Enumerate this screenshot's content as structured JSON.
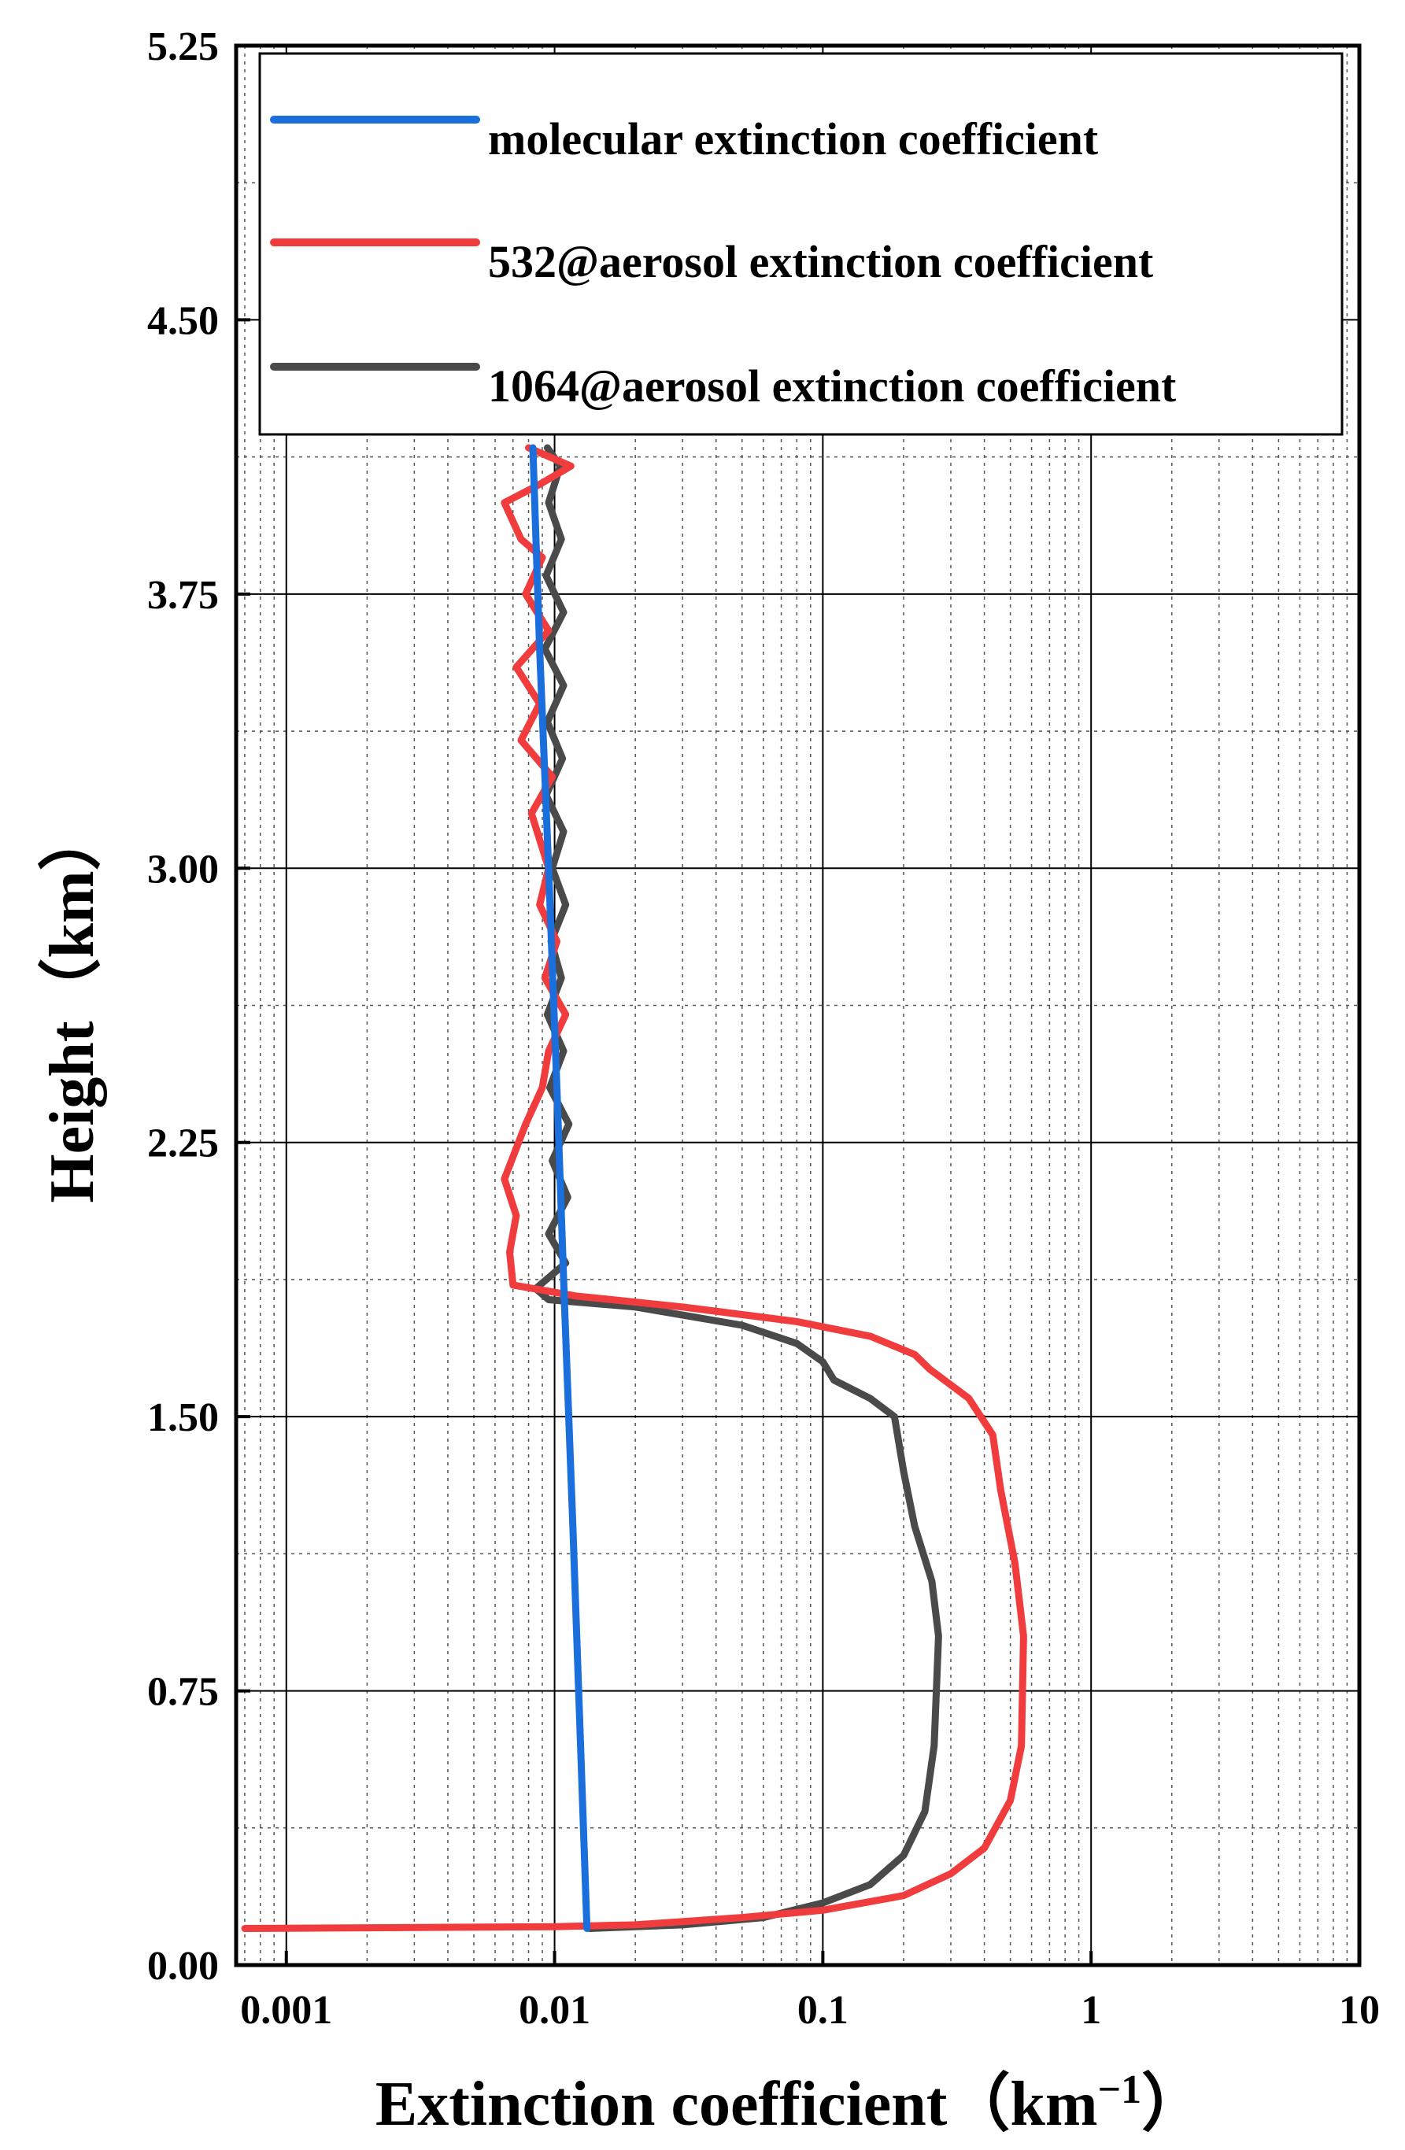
{
  "chart_data": {
    "type": "line",
    "xlabel": "Extinction coefficient（km",
    "xlabel_sup": "−1",
    "xlabel_close": "）",
    "ylabel": "Height（km）",
    "x_scale": "log",
    "xlim": [
      0.00065,
      10
    ],
    "ylim": [
      0,
      5.25
    ],
    "x_ticks": [
      0.001,
      0.01,
      0.1,
      1,
      10
    ],
    "x_tick_labels": [
      "0.001",
      "0.01",
      "0.1",
      "1",
      "10"
    ],
    "y_ticks": [
      0,
      0.75,
      1.5,
      2.25,
      3.0,
      3.75,
      4.5,
      5.25
    ],
    "y_tick_labels": [
      "0.00",
      "0.75",
      "1.50",
      "2.25",
      "3.00",
      "3.75",
      "4.50",
      "5.25"
    ],
    "grid": true,
    "legend": "top",
    "series": [
      {
        "name": "molecular extinction coefficient",
        "color": "#1a6fdc",
        "points": [
          [
            0.0132,
            0.1
          ],
          [
            0.0125,
            0.6
          ],
          [
            0.0117,
            1.2
          ],
          [
            0.0109,
            1.8
          ],
          [
            0.0102,
            2.4
          ],
          [
            0.0095,
            3.0
          ],
          [
            0.0088,
            3.6
          ],
          [
            0.0083,
            4.15
          ]
        ]
      },
      {
        "name": "532@aerosol extinction coefficient",
        "color": "#f03c3c",
        "points": [
          [
            0.0007,
            0.1
          ],
          [
            0.01,
            0.105
          ],
          [
            0.02,
            0.11
          ],
          [
            0.05,
            0.13
          ],
          [
            0.1,
            0.15
          ],
          [
            0.2,
            0.19
          ],
          [
            0.3,
            0.25
          ],
          [
            0.4,
            0.32
          ],
          [
            0.5,
            0.45
          ],
          [
            0.55,
            0.6
          ],
          [
            0.56,
            0.9
          ],
          [
            0.52,
            1.1
          ],
          [
            0.46,
            1.3
          ],
          [
            0.43,
            1.45
          ],
          [
            0.35,
            1.55
          ],
          [
            0.25,
            1.63
          ],
          [
            0.22,
            1.67
          ],
          [
            0.15,
            1.72
          ],
          [
            0.08,
            1.76
          ],
          [
            0.03,
            1.8
          ],
          [
            0.012,
            1.83
          ],
          [
            0.007,
            1.86
          ],
          [
            0.0068,
            1.95
          ],
          [
            0.0072,
            2.05
          ],
          [
            0.0065,
            2.15
          ],
          [
            0.0078,
            2.3
          ],
          [
            0.009,
            2.4
          ],
          [
            0.0095,
            2.5
          ],
          [
            0.011,
            2.6
          ],
          [
            0.0092,
            2.7
          ],
          [
            0.0102,
            2.8
          ],
          [
            0.0088,
            2.9
          ],
          [
            0.0095,
            3.0
          ],
          [
            0.0082,
            3.15
          ],
          [
            0.0098,
            3.25
          ],
          [
            0.0075,
            3.35
          ],
          [
            0.0088,
            3.45
          ],
          [
            0.0072,
            3.55
          ],
          [
            0.0095,
            3.65
          ],
          [
            0.0078,
            3.75
          ],
          [
            0.009,
            3.85
          ],
          [
            0.0075,
            3.9
          ],
          [
            0.0065,
            4.0
          ],
          [
            0.0088,
            4.05
          ],
          [
            0.0115,
            4.1
          ],
          [
            0.008,
            4.15
          ]
        ]
      },
      {
        "name": "1064@aerosol extinction coefficient",
        "color": "#4a4a4a",
        "points": [
          [
            0.0135,
            0.1
          ],
          [
            0.03,
            0.11
          ],
          [
            0.06,
            0.13
          ],
          [
            0.1,
            0.17
          ],
          [
            0.15,
            0.22
          ],
          [
            0.2,
            0.3
          ],
          [
            0.24,
            0.42
          ],
          [
            0.26,
            0.6
          ],
          [
            0.27,
            0.9
          ],
          [
            0.255,
            1.05
          ],
          [
            0.22,
            1.2
          ],
          [
            0.2,
            1.35
          ],
          [
            0.185,
            1.5
          ],
          [
            0.15,
            1.55
          ],
          [
            0.11,
            1.6
          ],
          [
            0.1,
            1.65
          ],
          [
            0.08,
            1.7
          ],
          [
            0.05,
            1.75
          ],
          [
            0.02,
            1.8
          ],
          [
            0.0095,
            1.82
          ],
          [
            0.0085,
            1.85
          ],
          [
            0.011,
            1.92
          ],
          [
            0.0095,
            2.0
          ],
          [
            0.0112,
            2.1
          ],
          [
            0.0098,
            2.2
          ],
          [
            0.0113,
            2.3
          ],
          [
            0.0096,
            2.4
          ],
          [
            0.0108,
            2.5
          ],
          [
            0.0094,
            2.6
          ],
          [
            0.0106,
            2.7
          ],
          [
            0.0097,
            2.8
          ],
          [
            0.011,
            2.9
          ],
          [
            0.0098,
            3.0
          ],
          [
            0.0108,
            3.1
          ],
          [
            0.0093,
            3.2
          ],
          [
            0.0107,
            3.3
          ],
          [
            0.0094,
            3.4
          ],
          [
            0.0108,
            3.5
          ],
          [
            0.0092,
            3.6
          ],
          [
            0.0108,
            3.7
          ],
          [
            0.0093,
            3.8
          ],
          [
            0.0106,
            3.9
          ],
          [
            0.0095,
            4.0
          ],
          [
            0.0105,
            4.1
          ],
          [
            0.0094,
            4.15
          ]
        ]
      }
    ]
  }
}
